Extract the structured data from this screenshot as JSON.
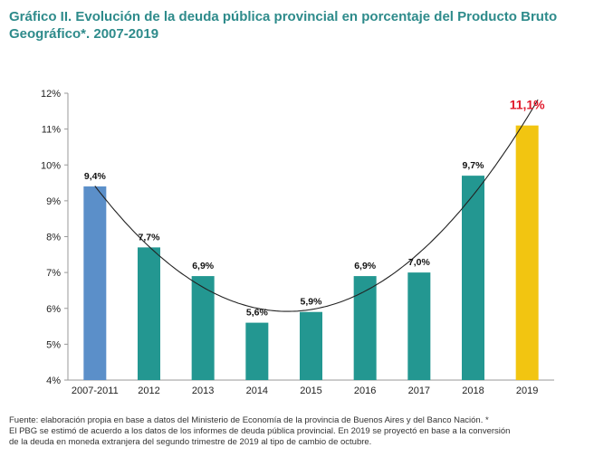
{
  "title": "Gráfico II. Evolución de la deuda pública provincial en porcentaje del Producto Bruto Geográfico*. 2007-2019",
  "colors": {
    "title": "#2e8b8b",
    "bar_first": "#5b8fc9",
    "bar_middle": "#239791",
    "bar_last": "#f2c511",
    "last_label": "#e11a2c",
    "trend": "#222222"
  },
  "chart_data": {
    "type": "bar",
    "categories": [
      "2007-2011",
      "2012",
      "2013",
      "2014",
      "2015",
      "2016",
      "2017",
      "2018",
      "2019"
    ],
    "values": [
      9.4,
      7.7,
      6.9,
      5.6,
      5.9,
      6.9,
      7.0,
      9.7,
      11.1
    ],
    "data_labels": [
      "9,4%",
      "7,7%",
      "6,9%",
      "5,6%",
      "5,9%",
      "6,9%",
      "7,0%",
      "9,7%",
      "11,1%"
    ],
    "ylim": [
      4,
      12
    ],
    "yticks": [
      4,
      5,
      6,
      7,
      8,
      9,
      10,
      11,
      12
    ],
    "ytick_labels": [
      "4%",
      "5%",
      "6%",
      "7%",
      "8%",
      "9%",
      "10%",
      "11%",
      "12%"
    ],
    "trend_line": "polynomial",
    "grid": false,
    "legend": "none"
  },
  "footnote": {
    "line1": "Fuente: elaboración propia en base a datos del Ministerio de Economía de la provincia de Buenos Aires y del Banco Nación. *",
    "line2": "El PBG se estimó de acuerdo a los datos de los informes de deuda pública provincial. En 2019 se proyectó en base a la conversión",
    "line3": "de la deuda en moneda extranjera del segundo trimestre de 2019 al tipo de cambio de octubre."
  }
}
